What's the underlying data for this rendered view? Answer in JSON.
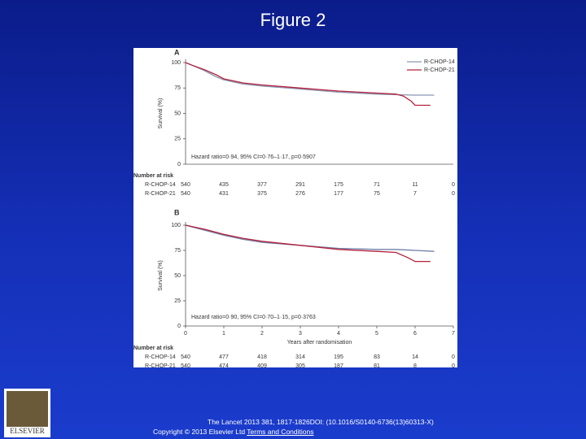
{
  "title": "Figure 2",
  "citation": "The Lancet 2013 381, 1817-1826DOI: (10.1016/S0140-6736(13)60313-X)",
  "copyright": "Copyright © 2013 Elsevier Ltd",
  "terms_link": "Terms and Conditions",
  "logo_text": "ELSEVIER",
  "chart_data": [
    {
      "type": "line",
      "panel_label": "A",
      "y_label": "Survival (%)",
      "annotation": "Hazard ratio=0·94, 95% CI=0·76–1·17, p=0·5907",
      "xlim": [
        0,
        7
      ],
      "ylim": [
        0,
        100
      ],
      "yticks": [
        0,
        25,
        50,
        75,
        100
      ],
      "series": [
        {
          "name": "R-CHOP-14",
          "color": "#8a96b2",
          "x": [
            0,
            0.2,
            0.5,
            0.8,
            1,
            1.5,
            2,
            3,
            4,
            5,
            6,
            6.5
          ],
          "values": [
            100,
            97,
            92,
            86,
            83,
            79,
            77,
            74,
            71,
            69,
            68,
            68
          ]
        },
        {
          "name": "R-CHOP-21",
          "color": "#b3203c",
          "x": [
            0,
            0.2,
            0.5,
            0.8,
            1,
            1.5,
            2,
            3,
            4,
            5,
            5.5,
            5.7,
            5.9,
            6,
            6.4
          ],
          "values": [
            100,
            97,
            93,
            88,
            84,
            80,
            78,
            75,
            72,
            70,
            69,
            67,
            62,
            58,
            58
          ]
        }
      ],
      "risk_table": {
        "title": "Number at risk",
        "rows": [
          {
            "name": "R-CHOP-14",
            "values": [
              540,
              435,
              377,
              291,
              175,
              71,
              11,
              0
            ]
          },
          {
            "name": "R-CHOP-21",
            "values": [
              540,
              431,
              375,
              276,
              177,
              75,
              7,
              0
            ]
          }
        ]
      }
    },
    {
      "type": "line",
      "panel_label": "B",
      "y_label": "Survival (%)",
      "x_label": "Years after randomisation",
      "annotation": "Hazard ratio=0·90, 95% CI=0·70–1·15, p=0·3763",
      "xlim": [
        0,
        7
      ],
      "ylim": [
        0,
        100
      ],
      "xticks": [
        0,
        1,
        2,
        3,
        4,
        5,
        6,
        7
      ],
      "yticks": [
        0,
        25,
        50,
        75,
        100
      ],
      "series": [
        {
          "name": "R-CHOP-14",
          "color": "#6f80a8",
          "x": [
            0,
            0.5,
            1,
            1.5,
            2,
            3,
            4,
            5,
            5.5,
            6.5
          ],
          "values": [
            100,
            95,
            90,
            86,
            83,
            80,
            77,
            76,
            76,
            74
          ]
        },
        {
          "name": "R-CHOP-21",
          "color": "#b3203c",
          "x": [
            0,
            0.5,
            1,
            1.5,
            2,
            3,
            4,
            5,
            5.5,
            5.8,
            6,
            6.4
          ],
          "values": [
            100,
            96,
            91,
            87,
            84,
            80,
            76,
            74,
            73,
            68,
            64,
            64
          ]
        }
      ],
      "risk_table": {
        "title": "Number at risk",
        "rows": [
          {
            "name": "R-CHOP-14",
            "values": [
              540,
              477,
              418,
              314,
              195,
              83,
              14,
              0
            ]
          },
          {
            "name": "R-CHOP-21",
            "values": [
              540,
              474,
              409,
              305,
              187,
              81,
              8,
              0
            ]
          }
        ]
      }
    }
  ]
}
